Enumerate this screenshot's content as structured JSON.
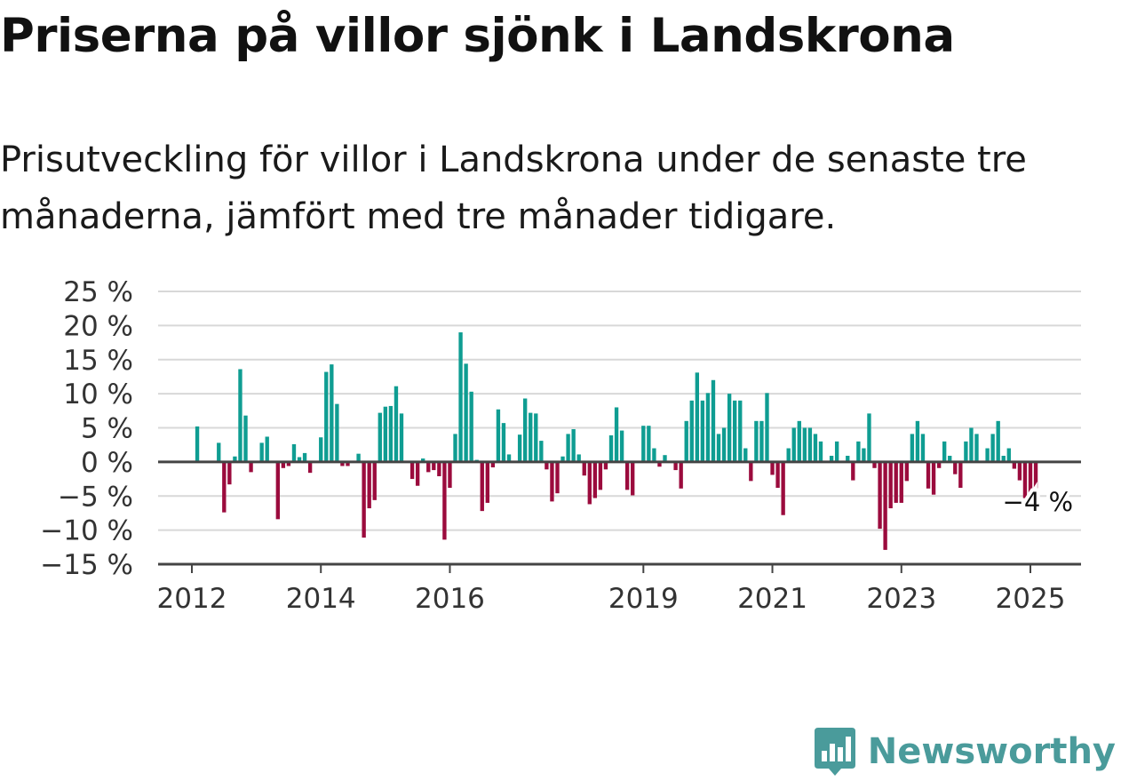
{
  "title": "Priserna på villor sjönk i Landskrona",
  "subtitle": "Prisutveckling för villor i Landskrona under de senaste tre månaderna, jämfört med tre månader tidigare.",
  "colors": {
    "positive": "#0f9d92",
    "negative": "#9b0b3d",
    "grid": "#d8d8d8",
    "axis": "#444444",
    "brand": "#4a9b9b"
  },
  "brand": {
    "name": "Newsworthy",
    "icon": "bar-chart-speech-icon"
  },
  "chart_data": {
    "type": "bar",
    "ylim": [
      -15,
      25
    ],
    "yticks": [
      25,
      20,
      15,
      10,
      5,
      0,
      -5,
      -10,
      -15
    ],
    "ytick_labels": [
      "25 %",
      "20 %",
      "15 %",
      "10 %",
      "5 %",
      "0 %",
      "−5 %",
      "−10 %",
      "−15 %"
    ],
    "xticks": [
      {
        "label": "2012",
        "at": 2012.0
      },
      {
        "label": "2014",
        "at": 2014.0
      },
      {
        "label": "2016",
        "at": 2016.0
      },
      {
        "label": "2019",
        "at": 2019.0
      },
      {
        "label": "2021",
        "at": 2021.0
      },
      {
        "label": "2023",
        "at": 2023.0
      },
      {
        "label": "2025",
        "at": 2025.0
      }
    ],
    "start": "2012-02",
    "values": [
      5.2,
      0,
      0,
      0,
      2.8,
      -7.4,
      -3.3,
      0.8,
      13.6,
      6.8,
      -1.5,
      0,
      2.8,
      3.7,
      0,
      -8.4,
      -0.9,
      -0.6,
      2.6,
      0.7,
      1.3,
      -1.6,
      0,
      3.6,
      13.2,
      14.3,
      8.5,
      -0.6,
      -0.6,
      0,
      1.2,
      -11.1,
      -6.8,
      -5.6,
      7.2,
      8.1,
      8.2,
      11.1,
      7.1,
      0,
      -2.5,
      -3.5,
      0.5,
      -1.5,
      -1.2,
      -2.1,
      -11.4,
      -3.8,
      4.1,
      19.0,
      14.4,
      10.3,
      0.3,
      -7.2,
      -6.0,
      -0.8,
      7.7,
      5.7,
      1.1,
      0,
      4.0,
      9.3,
      7.2,
      7.1,
      3.1,
      -1.1,
      -5.8,
      -4.6,
      0.8,
      4.1,
      4.8,
      1.1,
      -2.0,
      -6.2,
      -5.3,
      -4.1,
      -1.1,
      3.9,
      8.0,
      4.6,
      -4.1,
      -4.9,
      0,
      5.3,
      5.3,
      2.0,
      -0.7,
      1.0,
      0,
      -1.2,
      -3.9,
      6.0,
      9.0,
      13.1,
      9.0,
      10.1,
      12.0,
      4.1,
      5.0,
      10.0,
      9.0,
      9.0,
      2.0,
      -2.8,
      6.0,
      6.0,
      10.1,
      -1.9,
      -3.8,
      -7.8,
      2.0,
      5.0,
      6.0,
      5.0,
      5.0,
      4.1,
      3.0,
      0,
      0.9,
      3.0,
      0,
      0.9,
      -2.7,
      3.0,
      2.0,
      7.1,
      -0.9,
      -9.8,
      -12.9,
      -6.8,
      -6.0,
      -6.0,
      -2.8,
      4.1,
      6.0,
      4.1,
      -3.9,
      -4.8,
      -0.9,
      3.0,
      0.9,
      -1.8,
      -3.8,
      3.0,
      5.0,
      4.1,
      0,
      2.0,
      4.1,
      6.0,
      0.9,
      2.0,
      -1.0,
      -2.7,
      -5.4,
      -5.0,
      -4.0
    ],
    "end_label": "−4 %"
  }
}
